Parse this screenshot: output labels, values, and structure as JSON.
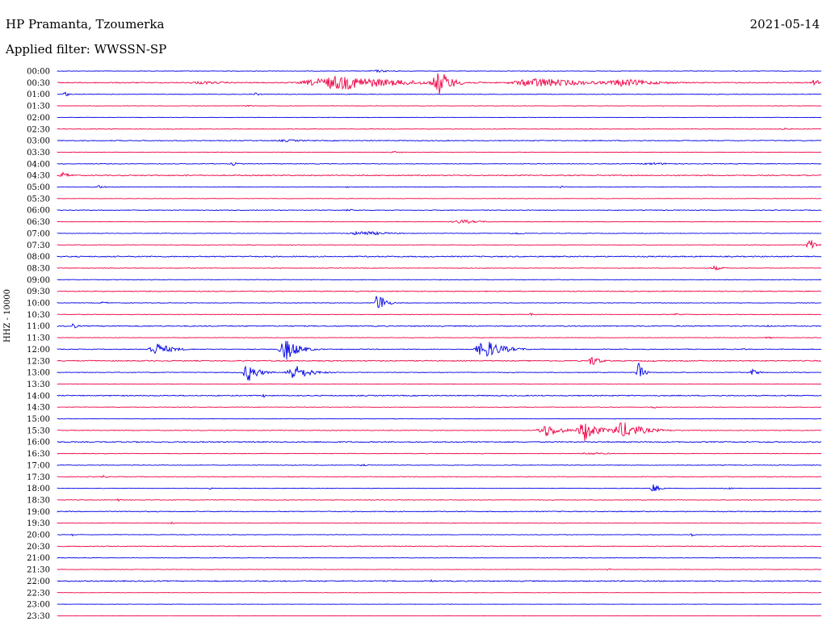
{
  "header": {
    "station": "HP Pramanta, Tzoumerka",
    "date": "2021-05-14",
    "filter": "Applied filter: WWSSN-SP"
  },
  "chart_data": {
    "type": "helicorder",
    "channel_label": "HHZ - 10000",
    "colors": {
      "even": "#0000e6",
      "odd": "#ee0044"
    },
    "rows": [
      {
        "time": "00:00",
        "base": 0.6,
        "events": [
          {
            "x": 0.42,
            "w": 0.08,
            "a": 1.5
          }
        ]
      },
      {
        "time": "00:30",
        "base": 1.2,
        "events": [
          {
            "x": 0.19,
            "w": 0.12,
            "a": 2
          },
          {
            "x": 0.37,
            "w": 0.25,
            "a": 9
          },
          {
            "x": 0.5,
            "w": 0.05,
            "a": 16
          },
          {
            "x": 0.63,
            "w": 0.2,
            "a": 6
          },
          {
            "x": 0.74,
            "w": 0.14,
            "a": 5
          },
          {
            "x": 0.99,
            "w": 0.02,
            "a": 7
          }
        ]
      },
      {
        "time": "01:00",
        "base": 0.7,
        "events": [
          {
            "x": 0.01,
            "w": 0.012,
            "a": 4
          },
          {
            "x": 0.26,
            "w": 0.02,
            "a": 2
          }
        ]
      },
      {
        "time": "01:30",
        "base": 0.5,
        "events": [
          {
            "x": 0.25,
            "w": 0.02,
            "a": 1.5
          }
        ]
      },
      {
        "time": "02:00",
        "base": 0.5,
        "events": []
      },
      {
        "time": "02:30",
        "base": 0.6,
        "events": [
          {
            "x": 0.07,
            "w": 0.01,
            "a": 2
          },
          {
            "x": 0.95,
            "w": 0.03,
            "a": 1.5
          }
        ]
      },
      {
        "time": "03:00",
        "base": 1.0,
        "events": [
          {
            "x": 0.3,
            "w": 0.1,
            "a": 1.5
          }
        ]
      },
      {
        "time": "03:30",
        "base": 0.5,
        "events": [
          {
            "x": 0.44,
            "w": 0.04,
            "a": 1.2
          }
        ]
      },
      {
        "time": "04:00",
        "base": 0.7,
        "events": [
          {
            "x": 0.23,
            "w": 0.02,
            "a": 2.5
          },
          {
            "x": 0.78,
            "w": 0.1,
            "a": 1.5
          }
        ]
      },
      {
        "time": "04:30",
        "base": 1.2,
        "events": [
          {
            "x": 0.008,
            "w": 0.03,
            "a": 4
          },
          {
            "x": 0.17,
            "w": 0.02,
            "a": 1.5
          }
        ]
      },
      {
        "time": "05:00",
        "base": 0.7,
        "events": [
          {
            "x": 0.055,
            "w": 0.02,
            "a": 2.5
          },
          {
            "x": 0.38,
            "w": 0.01,
            "a": 2
          },
          {
            "x": 0.66,
            "w": 0.02,
            "a": 1.5
          }
        ]
      },
      {
        "time": "05:30",
        "base": 0.5,
        "events": []
      },
      {
        "time": "06:00",
        "base": 0.8,
        "events": [
          {
            "x": 0.38,
            "w": 0.04,
            "a": 1.5
          }
        ]
      },
      {
        "time": "06:30",
        "base": 0.6,
        "events": [
          {
            "x": 0.53,
            "w": 0.08,
            "a": 2.5
          }
        ]
      },
      {
        "time": "07:00",
        "base": 0.6,
        "events": [
          {
            "x": 0.4,
            "w": 0.1,
            "a": 3
          },
          {
            "x": 0.6,
            "w": 0.04,
            "a": 1.5
          }
        ]
      },
      {
        "time": "07:30",
        "base": 0.6,
        "events": [
          {
            "x": 0.985,
            "w": 0.025,
            "a": 8
          },
          {
            "x": 0.25,
            "w": 0.02,
            "a": 1.5
          }
        ]
      },
      {
        "time": "08:00",
        "base": 1.3,
        "events": []
      },
      {
        "time": "08:30",
        "base": 0.6,
        "events": [
          {
            "x": 0.86,
            "w": 0.03,
            "a": 3
          },
          {
            "x": 0.07,
            "w": 0.01,
            "a": 1.5
          }
        ]
      },
      {
        "time": "09:00",
        "base": 0.7,
        "events": []
      },
      {
        "time": "09:30",
        "base": 1.0,
        "events": []
      },
      {
        "time": "10:00",
        "base": 0.7,
        "events": [
          {
            "x": 0.42,
            "w": 0.025,
            "a": 15
          },
          {
            "x": 0.06,
            "w": 0.03,
            "a": 1.5
          }
        ]
      },
      {
        "time": "10:30",
        "base": 0.7,
        "events": [
          {
            "x": 0.62,
            "w": 0.02,
            "a": 2
          },
          {
            "x": 0.81,
            "w": 0.02,
            "a": 1.5
          }
        ]
      },
      {
        "time": "11:00",
        "base": 1.2,
        "events": [
          {
            "x": 0.02,
            "w": 0.02,
            "a": 4
          },
          {
            "x": 0.93,
            "w": 0.02,
            "a": 1.5
          }
        ]
      },
      {
        "time": "11:30",
        "base": 0.6,
        "events": [
          {
            "x": 0.93,
            "w": 0.02,
            "a": 1.5
          }
        ]
      },
      {
        "time": "12:00",
        "base": 0.9,
        "events": [
          {
            "x": 0.13,
            "w": 0.06,
            "a": 8
          },
          {
            "x": 0.3,
            "w": 0.05,
            "a": 14
          },
          {
            "x": 0.56,
            "w": 0.07,
            "a": 12
          },
          {
            "x": 0.9,
            "w": 0.02,
            "a": 1.5
          }
        ]
      },
      {
        "time": "12:30",
        "base": 1.2,
        "events": [
          {
            "x": 0.7,
            "w": 0.03,
            "a": 7
          },
          {
            "x": 0.78,
            "w": 0.01,
            "a": 1.5
          }
        ]
      },
      {
        "time": "13:00",
        "base": 0.8,
        "events": [
          {
            "x": 0.25,
            "w": 0.04,
            "a": 12
          },
          {
            "x": 0.31,
            "w": 0.06,
            "a": 10
          },
          {
            "x": 0.76,
            "w": 0.02,
            "a": 14
          },
          {
            "x": 0.91,
            "w": 0.03,
            "a": 4
          }
        ]
      },
      {
        "time": "13:30",
        "base": 0.5,
        "events": []
      },
      {
        "time": "14:00",
        "base": 1.2,
        "events": [
          {
            "x": 0.27,
            "w": 0.01,
            "a": 3
          }
        ]
      },
      {
        "time": "14:30",
        "base": 0.6,
        "events": [
          {
            "x": 0.78,
            "w": 0.02,
            "a": 1.5
          }
        ]
      },
      {
        "time": "15:00",
        "base": 0.6,
        "events": [
          {
            "x": 0.5,
            "w": 0.01,
            "a": 1.5
          }
        ]
      },
      {
        "time": "15:30",
        "base": 0.8,
        "events": [
          {
            "x": 0.64,
            "w": 0.06,
            "a": 8
          },
          {
            "x": 0.69,
            "w": 0.05,
            "a": 14
          },
          {
            "x": 0.74,
            "w": 0.08,
            "a": 11
          }
        ]
      },
      {
        "time": "16:00",
        "base": 1.3,
        "events": []
      },
      {
        "time": "16:30",
        "base": 0.7,
        "events": [
          {
            "x": 0.7,
            "w": 0.08,
            "a": 1.5
          }
        ]
      },
      {
        "time": "17:00",
        "base": 0.7,
        "events": [
          {
            "x": 0.4,
            "w": 0.02,
            "a": 2
          }
        ]
      },
      {
        "time": "17:30",
        "base": 0.7,
        "events": [
          {
            "x": 0.06,
            "w": 0.02,
            "a": 2
          }
        ]
      },
      {
        "time": "18:00",
        "base": 0.6,
        "events": [
          {
            "x": 0.78,
            "w": 0.02,
            "a": 7
          },
          {
            "x": 0.88,
            "w": 0.02,
            "a": 1.5
          },
          {
            "x": 0.2,
            "w": 0.01,
            "a": 1.5
          }
        ]
      },
      {
        "time": "18:30",
        "base": 0.7,
        "events": [
          {
            "x": 0.08,
            "w": 0.02,
            "a": 1.5
          }
        ]
      },
      {
        "time": "19:00",
        "base": 1.0,
        "events": []
      },
      {
        "time": "19:30",
        "base": 0.6,
        "events": [
          {
            "x": 0.15,
            "w": 0.01,
            "a": 2
          }
        ]
      },
      {
        "time": "20:00",
        "base": 0.6,
        "events": [
          {
            "x": 0.83,
            "w": 0.01,
            "a": 3
          },
          {
            "x": 0.02,
            "w": 0.01,
            "a": 1.5
          }
        ]
      },
      {
        "time": "20:30",
        "base": 0.9,
        "events": []
      },
      {
        "time": "21:00",
        "base": 0.5,
        "events": []
      },
      {
        "time": "21:30",
        "base": 0.5,
        "events": [
          {
            "x": 0.72,
            "w": 0.02,
            "a": 1.5
          }
        ]
      },
      {
        "time": "22:00",
        "base": 1.3,
        "events": [
          {
            "x": 0.49,
            "w": 0.01,
            "a": 2
          }
        ]
      },
      {
        "time": "22:30",
        "base": 0.4,
        "events": []
      },
      {
        "time": "23:00",
        "base": 0.3,
        "events": []
      },
      {
        "time": "23:30",
        "base": 0.3,
        "events": []
      }
    ]
  }
}
